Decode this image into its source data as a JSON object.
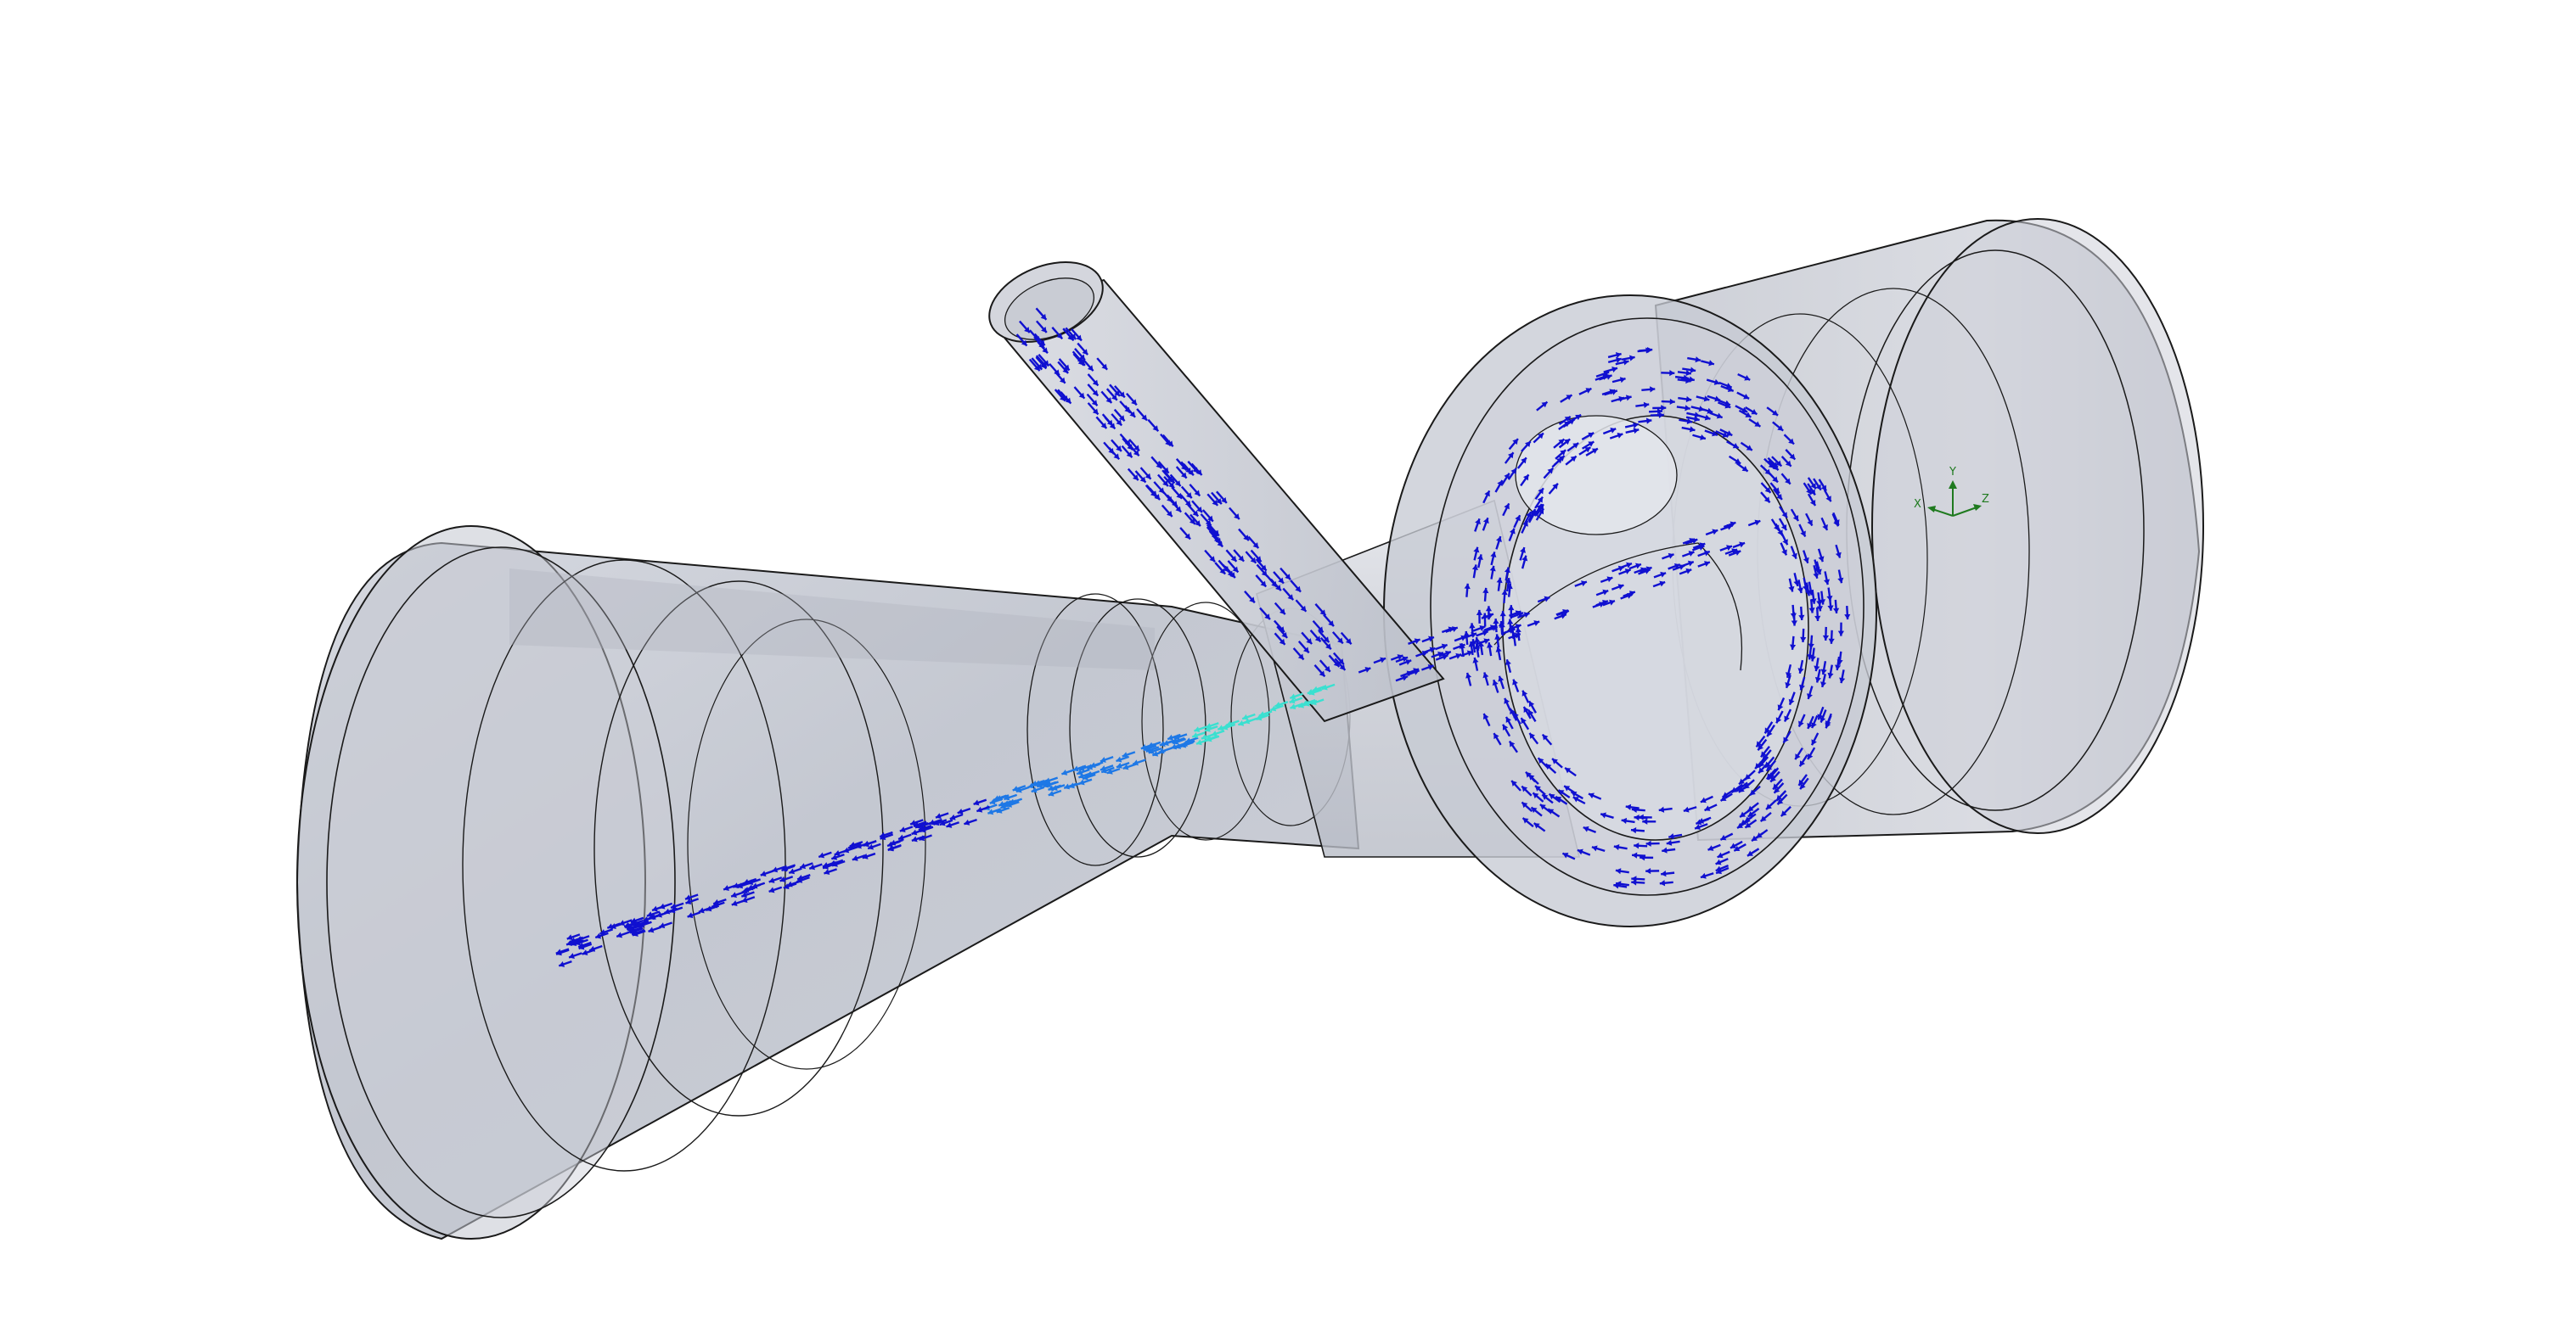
{
  "viewport": {
    "background": "#ffffff"
  },
  "model": {
    "body_fill": "#c6c9d3",
    "body_fill_dark": "#aeb2bf",
    "body_fill_light": "#e1e3ea",
    "edge_color": "#1a1a1a",
    "components": [
      "large-diffuser-cone",
      "inclined-inlet-pipe",
      "swirl-chamber",
      "outlet-cylinder"
    ]
  },
  "flow_field": {
    "vector_color_low": "#1010d0",
    "vector_color_mid": "#1e78e6",
    "vector_color_high": "#3ae0d0"
  },
  "triad": {
    "axis_color": "#1f7a1f",
    "x_label": "X",
    "y_label": "Y",
    "z_label": "Z"
  }
}
